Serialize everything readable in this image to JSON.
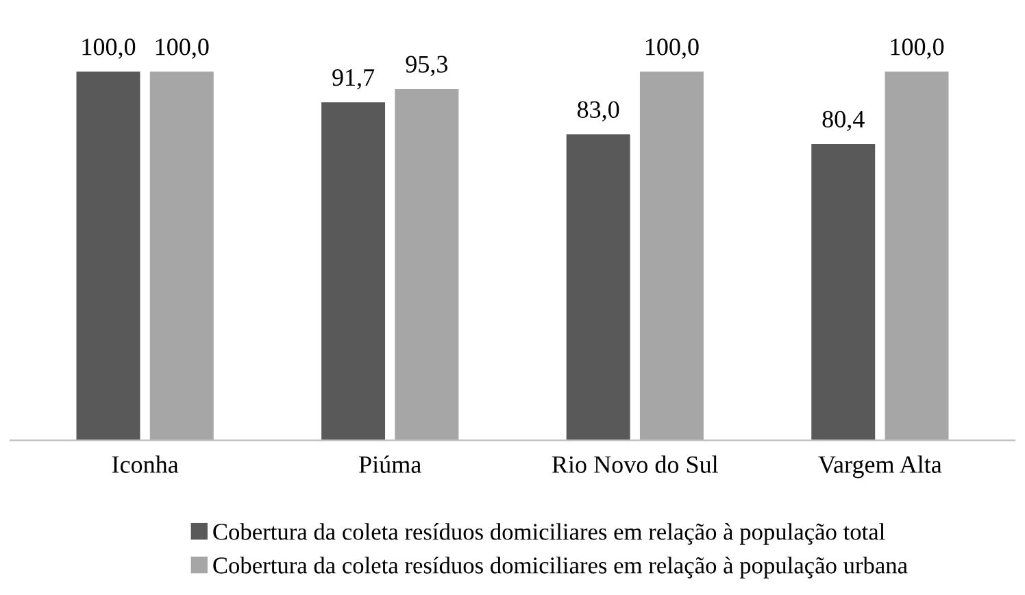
{
  "chart_data": {
    "type": "bar",
    "categories": [
      "Iconha",
      "Piúma",
      "Rio Novo do Sul",
      "Vargem Alta"
    ],
    "series": [
      {
        "name": "Cobertura da coleta resíduos domiciliares em relação à população total",
        "color": "#595959",
        "values": [
          100.0,
          91.7,
          83.0,
          80.4
        ],
        "value_labels": [
          "100,0",
          "91,7",
          "83,0",
          "80,4"
        ]
      },
      {
        "name": "Cobertura da coleta resíduos domiciliares em relação à população urbana",
        "color": "#a6a6a6",
        "values": [
          100.0,
          95.3,
          100.0,
          100.0
        ],
        "value_labels": [
          "100,0",
          "95,3",
          "100,0",
          "100,0"
        ]
      }
    ],
    "legend": "bottom",
    "grid": false
  }
}
